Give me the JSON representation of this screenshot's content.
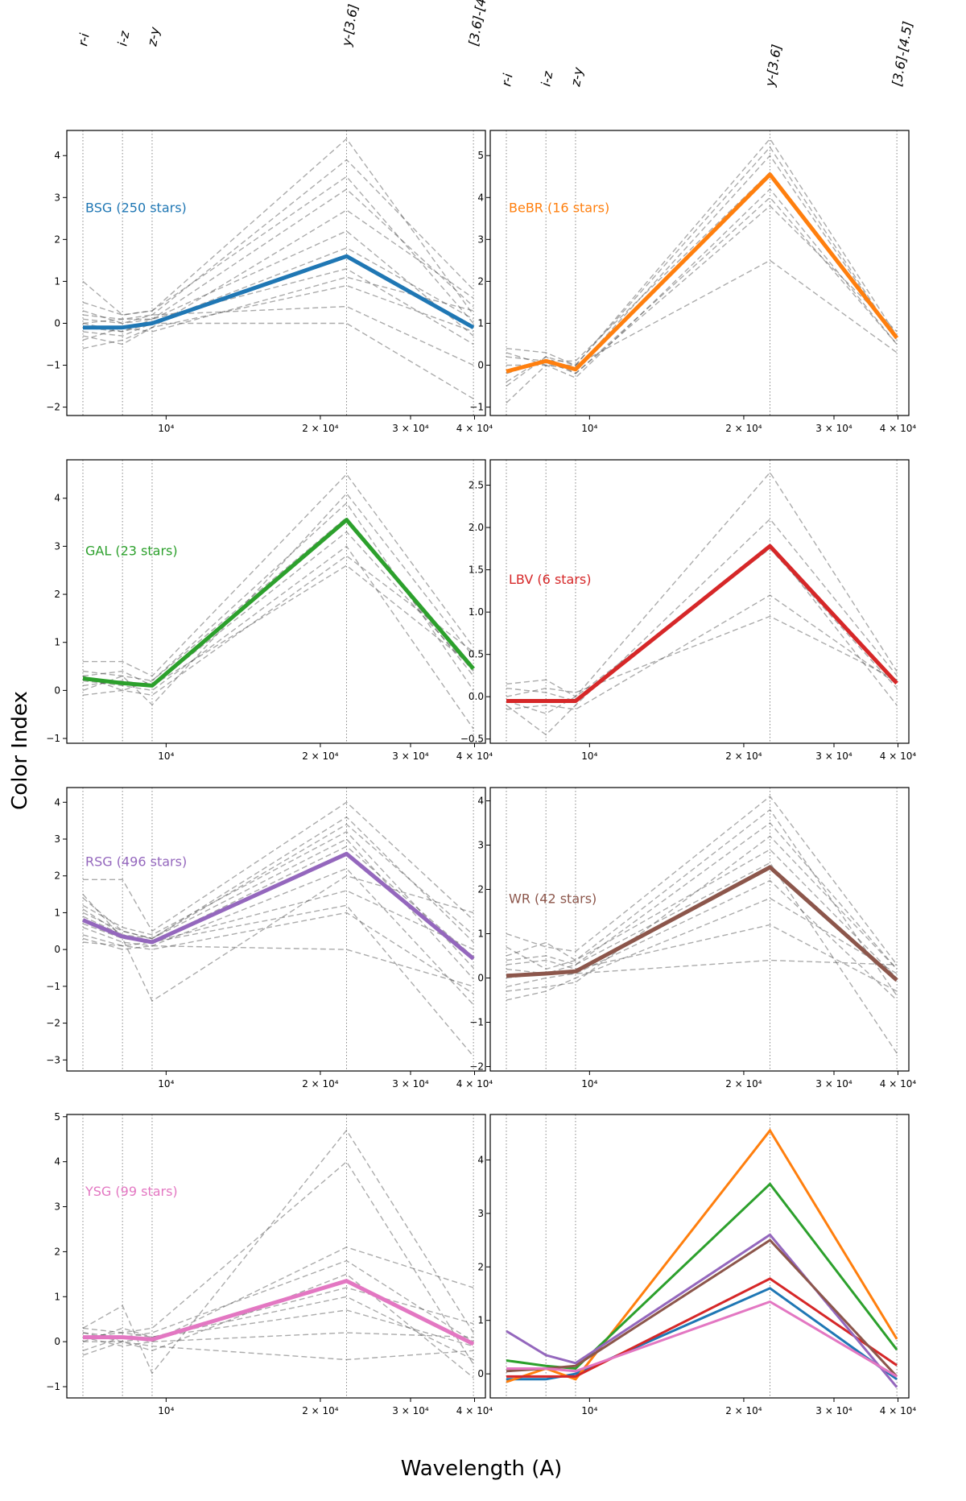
{
  "figure": {
    "ylabel": "Color Index",
    "xlabel": "Wavelength (A)",
    "xscale": "log",
    "band_labels": [
      "r-i",
      "i-z",
      "z-y",
      "y-[3.6]",
      "[3.6]-[4.5]"
    ],
    "band_wavelengths": [
      6880,
      8220,
      9390,
      22500,
      39800
    ],
    "x_ticks": [
      {
        "value": 10000,
        "label": "10⁴"
      },
      {
        "value": 20000,
        "label": "2 × 10⁴"
      },
      {
        "value": 30000,
        "label": "3 × 10⁴"
      },
      {
        "value": 40000,
        "label": "4 × 10⁴"
      }
    ],
    "xlim": [
      6400,
      42000
    ]
  },
  "chart_data": [
    {
      "type": "line",
      "panel": "BSG",
      "label": "BSG (250 stars)",
      "color": "#1f77b4",
      "ylim": [
        -2.2,
        4.6
      ],
      "yticks": [
        -2,
        -1,
        0,
        1,
        2,
        3,
        4
      ],
      "mean": [
        -0.1,
        -0.1,
        0.0,
        1.6,
        -0.1
      ],
      "individual_examples": [
        [
          1.0,
          0.2,
          0.3,
          4.4,
          0.2
        ],
        [
          0.3,
          0.0,
          0.2,
          3.9,
          0.8
        ],
        [
          0.0,
          -0.2,
          0.1,
          3.2,
          0.4
        ],
        [
          -0.6,
          -0.4,
          -0.1,
          2.7,
          0.6
        ],
        [
          0.2,
          0.1,
          0.1,
          2.2,
          -0.3
        ],
        [
          -0.2,
          -0.3,
          0.0,
          1.8,
          0.1
        ],
        [
          0.1,
          0.0,
          0.1,
          1.3,
          -0.5
        ],
        [
          -0.3,
          -0.5,
          -0.1,
          0.9,
          -0.2
        ],
        [
          0.0,
          0.1,
          0.2,
          0.4,
          -1.0
        ],
        [
          -0.1,
          -0.2,
          0.0,
          0.0,
          -1.8
        ],
        [
          0.5,
          0.2,
          0.3,
          3.5,
          0.0
        ],
        [
          -0.4,
          -0.1,
          -0.2,
          1.1,
          0.3
        ]
      ]
    },
    {
      "type": "line",
      "panel": "BeBR",
      "label": "BeBR (16 stars)",
      "color": "#ff7f0e",
      "ylim": [
        -1.2,
        5.6
      ],
      "yticks": [
        -1,
        0,
        1,
        2,
        3,
        4,
        5
      ],
      "mean": [
        -0.15,
        0.1,
        -0.1,
        4.55,
        0.65
      ],
      "individual_examples": [
        [
          0.4,
          0.3,
          0.0,
          5.4,
          0.7
        ],
        [
          -0.9,
          0.0,
          -0.3,
          4.2,
          0.5
        ],
        [
          0.2,
          0.1,
          -0.2,
          3.8,
          0.8
        ],
        [
          -0.5,
          0.2,
          0.0,
          2.5,
          0.3
        ],
        [
          0.0,
          0.0,
          -0.1,
          5.0,
          0.6
        ],
        [
          -0.2,
          0.1,
          0.1,
          4.6,
          0.7
        ],
        [
          -0.4,
          0.2,
          -0.2,
          4.0,
          0.5
        ],
        [
          0.3,
          0.0,
          0.0,
          5.2,
          0.6
        ]
      ]
    },
    {
      "type": "line",
      "panel": "GAL",
      "label": "GAL (23 stars)",
      "color": "#2ca02c",
      "ylim": [
        -1.1,
        4.8
      ],
      "yticks": [
        -1,
        0,
        1,
        2,
        3,
        4
      ],
      "mean": [
        0.25,
        0.15,
        0.1,
        3.55,
        0.45
      ],
      "individual_examples": [
        [
          0.6,
          0.6,
          0.3,
          4.5,
          0.9
        ],
        [
          0.0,
          0.3,
          -0.3,
          4.1,
          0.7
        ],
        [
          0.3,
          0.0,
          0.2,
          3.6,
          0.3
        ],
        [
          0.2,
          0.1,
          0.0,
          3.0,
          -0.8
        ],
        [
          0.1,
          0.2,
          0.1,
          2.6,
          0.5
        ],
        [
          0.4,
          0.3,
          0.2,
          3.9,
          0.0
        ],
        [
          -0.1,
          0.0,
          -0.1,
          2.8,
          0.8
        ],
        [
          0.3,
          0.4,
          0.1,
          3.3,
          0.4
        ]
      ]
    },
    {
      "type": "line",
      "panel": "LBV",
      "label": "LBV (6 stars)",
      "color": "#d62728",
      "ylim": [
        -0.55,
        2.8
      ],
      "yticks": [
        -0.5,
        0.0,
        0.5,
        1.0,
        1.5,
        2.0,
        2.5
      ],
      "mean": [
        -0.05,
        -0.05,
        -0.05,
        1.78,
        0.16
      ],
      "individual_examples": [
        [
          0.15,
          0.2,
          0.0,
          2.65,
          0.3
        ],
        [
          -0.1,
          -0.45,
          -0.1,
          2.1,
          0.25
        ],
        [
          0.1,
          0.05,
          -0.05,
          1.8,
          -0.1
        ],
        [
          -0.15,
          -0.1,
          -0.15,
          1.2,
          0.15
        ],
        [
          0.0,
          0.1,
          0.05,
          0.95,
          0.2
        ],
        [
          -0.05,
          -0.2,
          0.0,
          1.75,
          0.1
        ]
      ]
    },
    {
      "type": "line",
      "panel": "RSG",
      "label": "RSG (496 stars)",
      "color": "#9467bd",
      "ylim": [
        -3.3,
        4.4
      ],
      "yticks": [
        -3,
        -2,
        -1,
        0,
        1,
        2,
        3,
        4
      ],
      "mean": [
        0.8,
        0.35,
        0.2,
        2.6,
        -0.25
      ],
      "individual_examples": [
        [
          1.9,
          1.9,
          0.5,
          4.0,
          0.8
        ],
        [
          1.5,
          0.3,
          -1.4,
          2.0,
          1.0
        ],
        [
          1.0,
          0.5,
          0.3,
          3.6,
          0.2
        ],
        [
          0.3,
          0.0,
          0.1,
          0.0,
          -1.0
        ],
        [
          0.9,
          0.4,
          0.2,
          1.2,
          -2.9
        ],
        [
          1.2,
          0.6,
          0.4,
          3.2,
          -0.5
        ],
        [
          0.6,
          0.2,
          0.1,
          2.2,
          -1.5
        ],
        [
          0.4,
          0.1,
          0.2,
          1.6,
          0.0
        ],
        [
          1.4,
          0.5,
          0.3,
          3.0,
          -0.8
        ],
        [
          0.7,
          0.3,
          0.2,
          2.8,
          -0.2
        ],
        [
          0.2,
          0.1,
          0.0,
          1.0,
          -1.2
        ],
        [
          1.1,
          0.4,
          0.3,
          3.4,
          0.4
        ]
      ]
    },
    {
      "type": "line",
      "panel": "WR",
      "label": "WR (42 stars)",
      "color": "#8c564b",
      "ylim": [
        -2.1,
        4.3
      ],
      "yticks": [
        -2,
        -1,
        0,
        1,
        2,
        3,
        4
      ],
      "mean": [
        0.05,
        0.1,
        0.15,
        2.5,
        -0.05
      ],
      "individual_examples": [
        [
          1.0,
          0.7,
          0.6,
          4.1,
          0.3
        ],
        [
          0.5,
          0.8,
          0.4,
          3.8,
          -0.4
        ],
        [
          -0.3,
          -0.2,
          -0.1,
          3.2,
          0.2
        ],
        [
          0.2,
          0.1,
          0.3,
          2.6,
          -1.7
        ],
        [
          -0.5,
          -0.3,
          0.0,
          1.8,
          0.1
        ],
        [
          0.3,
          0.4,
          0.2,
          1.2,
          -0.3
        ],
        [
          0.0,
          0.1,
          0.1,
          0.4,
          0.3
        ],
        [
          0.7,
          0.2,
          0.4,
          2.9,
          0.0
        ],
        [
          -0.2,
          0.0,
          0.1,
          2.2,
          -0.5
        ],
        [
          0.4,
          0.5,
          0.3,
          3.5,
          0.2
        ]
      ]
    },
    {
      "type": "line",
      "panel": "YSG",
      "label": "YSG (99 stars)",
      "color": "#e377c2",
      "ylim": [
        -1.25,
        5.05
      ],
      "yticks": [
        -1,
        0,
        1,
        2,
        3,
        4,
        5
      ],
      "mean": [
        0.1,
        0.1,
        0.05,
        1.35,
        -0.05
      ],
      "individual_examples": [
        [
          0.3,
          0.8,
          -0.7,
          4.7,
          0.2
        ],
        [
          0.1,
          0.2,
          0.3,
          4.0,
          -0.5
        ],
        [
          -0.2,
          0.1,
          0.0,
          2.1,
          1.2
        ],
        [
          0.2,
          0.0,
          -0.2,
          1.5,
          -0.8
        ],
        [
          0.0,
          0.3,
          0.1,
          1.0,
          -0.4
        ],
        [
          0.1,
          -0.1,
          0.0,
          0.2,
          0.1
        ],
        [
          -0.3,
          0.0,
          -0.1,
          -0.4,
          -0.2
        ],
        [
          0.2,
          0.1,
          0.2,
          1.8,
          0.0
        ],
        [
          0.0,
          0.0,
          0.1,
          1.2,
          0.4
        ],
        [
          0.3,
          0.2,
          0.1,
          0.7,
          -0.1
        ]
      ]
    },
    {
      "type": "line",
      "panel": "summary",
      "label": "",
      "color": "",
      "ylim": [
        -0.45,
        4.85
      ],
      "yticks": [
        0,
        1,
        2,
        3,
        4
      ],
      "series": [
        {
          "name": "BSG",
          "color": "#1f77b4",
          "values": [
            -0.1,
            -0.1,
            0.0,
            1.6,
            -0.1
          ]
        },
        {
          "name": "BeBR",
          "color": "#ff7f0e",
          "values": [
            -0.15,
            0.1,
            -0.1,
            4.55,
            0.65
          ]
        },
        {
          "name": "GAL",
          "color": "#2ca02c",
          "values": [
            0.25,
            0.15,
            0.1,
            3.55,
            0.45
          ]
        },
        {
          "name": "LBV",
          "color": "#d62728",
          "values": [
            -0.05,
            -0.05,
            -0.05,
            1.78,
            0.16
          ]
        },
        {
          "name": "RSG",
          "color": "#9467bd",
          "values": [
            0.8,
            0.35,
            0.2,
            2.6,
            -0.25
          ]
        },
        {
          "name": "WR",
          "color": "#8c564b",
          "values": [
            0.05,
            0.1,
            0.15,
            2.5,
            -0.05
          ]
        },
        {
          "name": "YSG",
          "color": "#e377c2",
          "values": [
            0.1,
            0.1,
            0.05,
            1.35,
            -0.05
          ]
        }
      ]
    }
  ]
}
